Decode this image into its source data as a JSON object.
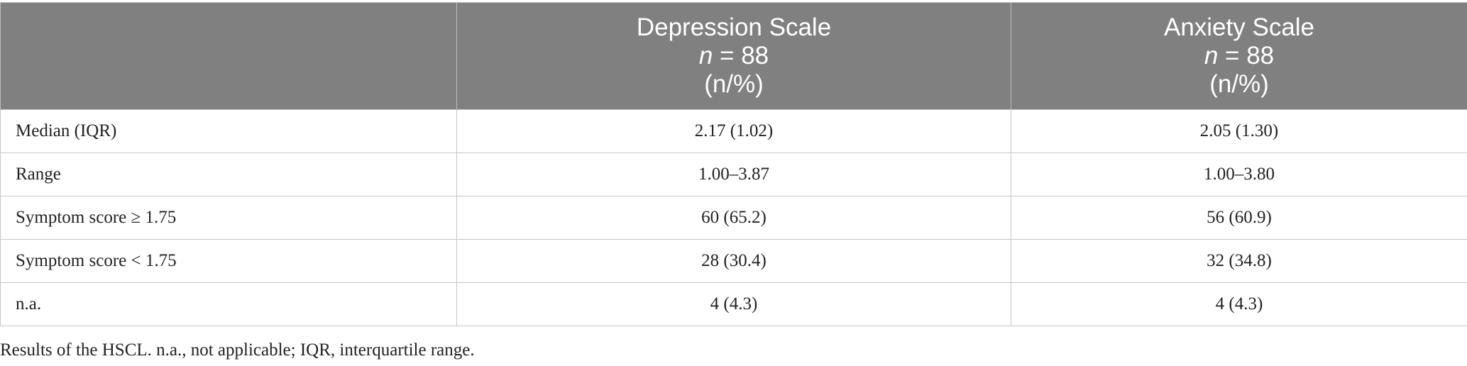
{
  "table": {
    "columns": [
      {
        "label_line1": "",
        "n_prefix": "",
        "n_text": "",
        "unit_line": ""
      },
      {
        "label_line1": "Depression Scale",
        "n_prefix": "n",
        "n_text": " = 88",
        "unit_line": "(n/%)"
      },
      {
        "label_line1": "Anxiety Scale",
        "n_prefix": "n",
        "n_text": " = 88",
        "unit_line": "(n/%)"
      }
    ],
    "rows": [
      {
        "label": "Median (IQR)",
        "depression": "2.17 (1.02)",
        "anxiety": "2.05 (1.30)"
      },
      {
        "label": "Range",
        "depression": "1.00–3.87",
        "anxiety": "1.00–3.80"
      },
      {
        "label": "Symptom score ≥ 1.75",
        "depression": "60 (65.2)",
        "anxiety": "56 (60.9)"
      },
      {
        "label": "Symptom score < 1.75",
        "depression": "28 (30.4)",
        "anxiety": "32 (34.8)"
      },
      {
        "label": "n.a.",
        "depression": "4 (4.3)",
        "anxiety": "4 (4.3)"
      }
    ]
  },
  "caption": "Results of the HSCL. n.a., not applicable; IQR, interquartile range.",
  "colors": {
    "header_bg": "#808080",
    "header_text": "#ffffff",
    "body_text": "#222222",
    "grid": "#c6c6c6"
  }
}
